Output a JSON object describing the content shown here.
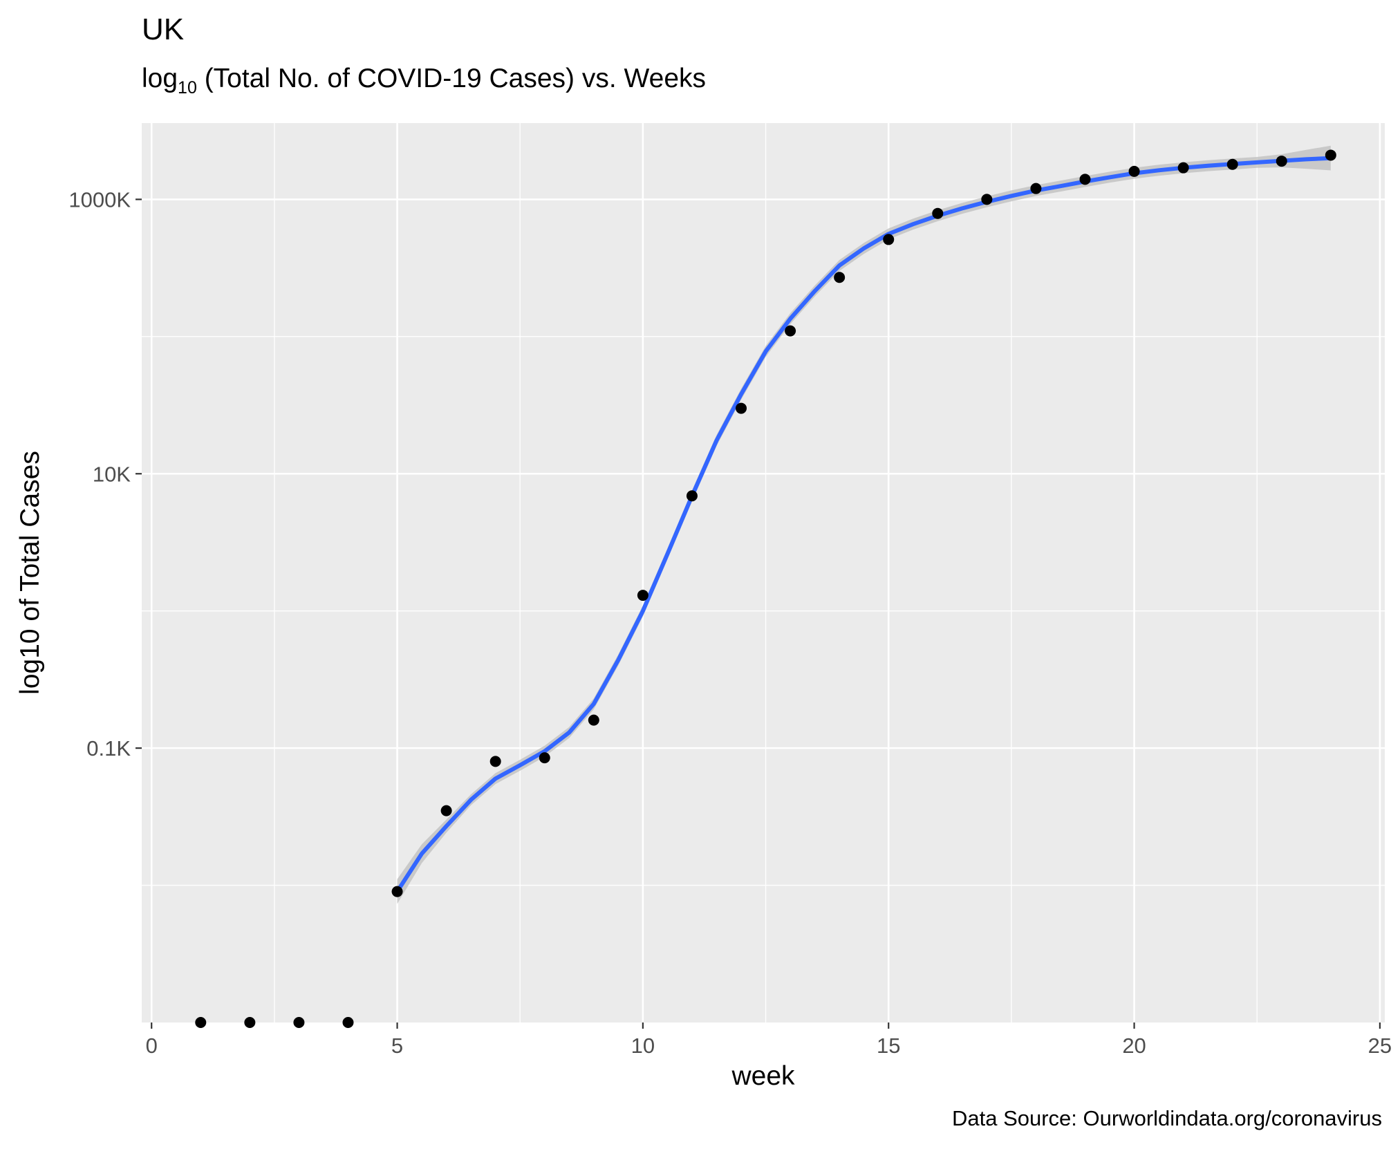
{
  "chart_data": {
    "type": "scatter",
    "title": "UK",
    "subtitle": {
      "prefix": "log",
      "subscript": "10",
      "suffix": " (Total No. of COVID-19 Cases) vs. Weeks"
    },
    "xlabel": "week",
    "ylabel": "log10 of Total Cases",
    "caption": "Data Source: Ourworldindata.org/coronavirus",
    "y_scale": "log10",
    "xlim": [
      -0.2,
      25.1
    ],
    "ylim": [
      1,
      3600000
    ],
    "x_ticks": [
      0,
      5,
      10,
      15,
      20,
      25
    ],
    "x_tick_labels": [
      "0",
      "5",
      "10",
      "15",
      "20",
      "25"
    ],
    "y_ticks": [
      100,
      10000,
      1000000
    ],
    "y_tick_labels": [
      "0.1K",
      "10K",
      "1000K"
    ],
    "grid": true,
    "colors": {
      "panel": "#EBEBEB",
      "grid": "#FFFFFF",
      "points": "#000000",
      "smooth_line": "#3366FF",
      "confidence_band": "#BEBEBE"
    },
    "series": [
      {
        "type": "points",
        "x": [
          1,
          2,
          3,
          4,
          5,
          6,
          7,
          8,
          9,
          10,
          11,
          12,
          13,
          14,
          15,
          16,
          17,
          18,
          19,
          20,
          21,
          22,
          23,
          24
        ],
        "y": [
          1,
          1,
          1,
          1,
          9,
          35,
          80,
          85,
          160,
          1300,
          6900,
          30000,
          110000,
          270000,
          510000,
          790000,
          1000000,
          1200000,
          1400000,
          1600000,
          1700000,
          1800000,
          1900000,
          2100000
        ]
      },
      {
        "type": "smooth",
        "x": [
          5,
          5.5,
          6,
          6.5,
          7,
          7.5,
          8,
          8.5,
          9,
          9.5,
          10,
          10.5,
          11,
          11.5,
          12,
          12.5,
          13,
          13.5,
          14,
          14.5,
          15,
          15.5,
          16,
          16.5,
          17,
          17.5,
          18,
          18.5,
          19,
          19.5,
          20,
          20.5,
          21,
          21.5,
          22,
          22.5,
          23,
          23.5,
          24
        ],
        "y": [
          9,
          17,
          27,
          42,
          60,
          75,
          95,
          130,
          210,
          440,
          1000,
          2600,
          6900,
          17500,
          38000,
          78000,
          135000,
          215000,
          330000,
          440000,
          560000,
          660000,
          760000,
          860000,
          960000,
          1060000,
          1160000,
          1250000,
          1350000,
          1450000,
          1550000,
          1630000,
          1700000,
          1760000,
          1810000,
          1860000,
          1910000,
          1960000,
          2000000
        ]
      }
    ]
  }
}
